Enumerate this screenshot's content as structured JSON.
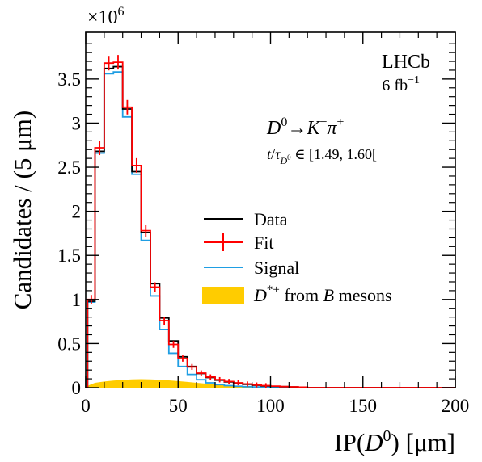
{
  "chart_data": {
    "type": "histogram",
    "xlabel_main": "IP(",
    "xlabel_var": "D",
    "xlabel_sup": "0",
    "xlabel_tail": ") [μm]",
    "ylabel": "Candidates / (5 μm)",
    "y_multiplier": "×10",
    "y_multiplier_exp": "6",
    "xlim": [
      0,
      200
    ],
    "ylim": [
      0,
      4.03
    ],
    "bin_width": 5,
    "x_ticks": [
      0,
      50,
      100,
      150,
      200
    ],
    "x_tick_labels": [
      "0",
      "50",
      "100",
      "150",
      "200"
    ],
    "y_ticks": [
      0,
      0.5,
      1,
      1.5,
      2,
      2.5,
      3,
      3.5
    ],
    "y_tick_labels": [
      "0",
      "0.5",
      "1",
      "1.5",
      "2",
      "2.5",
      "3",
      "3.5"
    ],
    "bin_edges": [
      0,
      1,
      5,
      10,
      15,
      20,
      25,
      30,
      35,
      40,
      45,
      50,
      55,
      60,
      65,
      70,
      75,
      80,
      85,
      90,
      95,
      100,
      105,
      110,
      115,
      120,
      200
    ],
    "series": [
      {
        "name": "Data",
        "color": "#000000",
        "values": [
          0.0,
          0.98,
          2.68,
          3.62,
          3.64,
          3.16,
          2.45,
          1.76,
          1.18,
          0.79,
          0.53,
          0.35,
          0.24,
          0.16,
          0.115,
          0.085,
          0.065,
          0.05,
          0.038,
          0.028,
          0.02,
          0.015,
          0.011,
          0.008,
          0.006,
          0.0
        ]
      },
      {
        "name": "Fit",
        "color": "#ff0000",
        "values": [
          0.0,
          1.0,
          2.72,
          3.68,
          3.69,
          3.18,
          2.52,
          1.78,
          1.14,
          0.76,
          0.49,
          0.33,
          0.235,
          0.165,
          0.12,
          0.09,
          0.07,
          0.055,
          0.042,
          0.031,
          0.023,
          0.017,
          0.012,
          0.009,
          0.006,
          0.0
        ]
      },
      {
        "name": "Signal",
        "color": "#1f9ee3",
        "values": [
          0.0,
          0.97,
          2.66,
          3.56,
          3.58,
          3.07,
          2.42,
          1.67,
          1.04,
          0.66,
          0.39,
          0.24,
          0.15,
          0.09,
          0.055,
          0.035,
          0.023,
          0.016,
          0.011,
          0.008,
          0.006,
          0.004,
          0.003,
          0.002,
          0.001,
          0.0
        ]
      },
      {
        "name": "D*+ from B mesons",
        "color": "#ffcc00",
        "x": [
          0,
          2,
          5,
          10,
          15,
          20,
          25,
          30,
          35,
          40,
          45,
          50,
          55,
          60,
          65,
          70,
          75,
          80,
          85,
          90,
          95,
          100,
          110,
          120,
          200
        ],
        "values": [
          0.0,
          0.03,
          0.055,
          0.07,
          0.08,
          0.088,
          0.094,
          0.096,
          0.094,
          0.089,
          0.082,
          0.074,
          0.065,
          0.055,
          0.046,
          0.037,
          0.029,
          0.022,
          0.016,
          0.011,
          0.007,
          0.004,
          0.001,
          0.0,
          0.0
        ]
      }
    ],
    "legend": [
      {
        "label": "Data"
      },
      {
        "label": "Fit"
      },
      {
        "label": "Signal"
      },
      {
        "label_sup": "*+",
        "label_main": "D",
        "label_tail": " from ",
        "label_var": "B",
        "label_tail2": " mesons"
      }
    ],
    "legend_position": "center-right",
    "annotations": {
      "experiment": "LHCb",
      "lumi_main": "6 fb",
      "lumi_sup": "−1",
      "decay_D": "D",
      "decay_D_sup": "0",
      "decay_arrow": "→",
      "decay_K": "K",
      "decay_K_sup": "−",
      "decay_pi": "π",
      "decay_pi_sup": "+",
      "bin_t": "t",
      "bin_slash": "/",
      "bin_tau": "τ",
      "bin_tau_sub": "D",
      "bin_tau_subsub": "0",
      "bin_in": " ∈ ",
      "bin_range": "[1.49, 1.60["
    },
    "grid": false
  }
}
